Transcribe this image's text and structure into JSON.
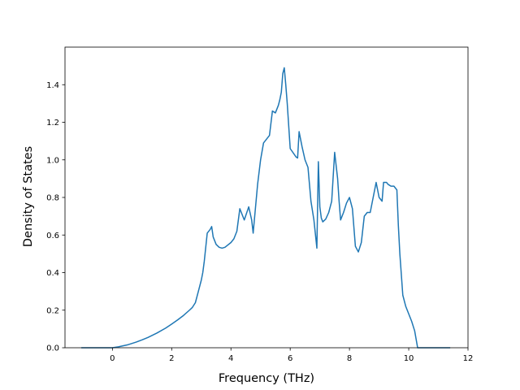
{
  "chart_data": {
    "type": "line",
    "title": "",
    "xlabel": "Frequency (THz)",
    "ylabel": "Density of States",
    "xlim": [
      -1.6,
      12.0
    ],
    "ylim": [
      0.0,
      1.6
    ],
    "xticks": [
      0,
      2,
      4,
      6,
      8,
      10,
      12
    ],
    "yticks": [
      0.0,
      0.2,
      0.4,
      0.6,
      0.8,
      1.0,
      1.2,
      1.4
    ],
    "xtick_labels": [
      "0",
      "2",
      "4",
      "6",
      "8",
      "10",
      "12"
    ],
    "ytick_labels": [
      "0.0",
      "0.2",
      "0.4",
      "0.6",
      "0.8",
      "1.0",
      "1.2",
      "1.4"
    ],
    "grid": false,
    "color": "#1f77b4",
    "series": [
      {
        "x": [
          -1.05,
          -0.5,
          0.0,
          0.2,
          0.5,
          0.8,
          1.0,
          1.2,
          1.5,
          1.8,
          2.0,
          2.2,
          2.4,
          2.6,
          2.7,
          2.8,
          2.9,
          3.0,
          3.05,
          3.1,
          3.2,
          3.3,
          3.35,
          3.4,
          3.5,
          3.6,
          3.7,
          3.8,
          4.0,
          4.1,
          4.2,
          4.3,
          4.45,
          4.6,
          4.7,
          4.75,
          4.9,
          5.0,
          5.1,
          5.2,
          5.3,
          5.4,
          5.5,
          5.6,
          5.65,
          5.7,
          5.75,
          5.8,
          5.85,
          5.9,
          6.0,
          6.2,
          6.25,
          6.3,
          6.4,
          6.5,
          6.6,
          6.7,
          6.8,
          6.9,
          6.95,
          7.0,
          7.05,
          7.1,
          7.2,
          7.3,
          7.4,
          7.5,
          7.6,
          7.65,
          7.7,
          7.8,
          7.9,
          8.0,
          8.1,
          8.2,
          8.3,
          8.4,
          8.5,
          8.6,
          8.7,
          8.8,
          8.9,
          9.0,
          9.1,
          9.15,
          9.25,
          9.3,
          9.4,
          9.5,
          9.6,
          9.65,
          9.7,
          9.8,
          9.9,
          10.0,
          10.1,
          10.2,
          10.3,
          10.4,
          10.6,
          11.4
        ],
        "y": [
          0.0,
          0.0,
          0.0,
          0.005,
          0.015,
          0.03,
          0.042,
          0.055,
          0.078,
          0.105,
          0.126,
          0.148,
          0.172,
          0.2,
          0.215,
          0.24,
          0.3,
          0.36,
          0.4,
          0.46,
          0.61,
          0.63,
          0.645,
          0.59,
          0.55,
          0.535,
          0.53,
          0.535,
          0.56,
          0.58,
          0.62,
          0.74,
          0.68,
          0.75,
          0.68,
          0.61,
          0.87,
          1.0,
          1.09,
          1.11,
          1.13,
          1.26,
          1.25,
          1.29,
          1.32,
          1.36,
          1.46,
          1.49,
          1.4,
          1.3,
          1.06,
          1.015,
          1.01,
          1.15,
          1.07,
          1.0,
          0.96,
          0.78,
          0.68,
          0.53,
          0.99,
          0.75,
          0.69,
          0.67,
          0.685,
          0.72,
          0.78,
          1.04,
          0.9,
          0.78,
          0.68,
          0.72,
          0.77,
          0.8,
          0.74,
          0.54,
          0.51,
          0.56,
          0.7,
          0.72,
          0.72,
          0.8,
          0.88,
          0.8,
          0.78,
          0.88,
          0.88,
          0.87,
          0.86,
          0.86,
          0.84,
          0.65,
          0.5,
          0.28,
          0.22,
          0.18,
          0.14,
          0.09,
          0.0,
          0.0,
          0.0,
          0.0
        ]
      }
    ]
  }
}
